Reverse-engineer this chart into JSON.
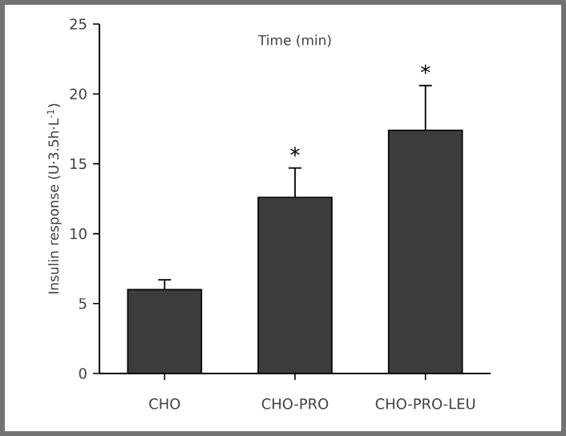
{
  "chart_data": {
    "type": "bar",
    "title": "Time  (min)",
    "ylabel": "Insulin response  (U·3.5h·L$^{-1}$)",
    "categories": [
      "CHO",
      "CHO-PRO",
      "CHO-PRO-LEU"
    ],
    "values": [
      6.0,
      12.6,
      17.4
    ],
    "errors": [
      0.7,
      2.1,
      3.2
    ],
    "color": "#3c3c3c",
    "ylim": [
      0,
      25
    ],
    "yticks": [
      0,
      5,
      10,
      15,
      20,
      25
    ],
    "grid": false,
    "annotations": [
      "*",
      "*"
    ]
  }
}
